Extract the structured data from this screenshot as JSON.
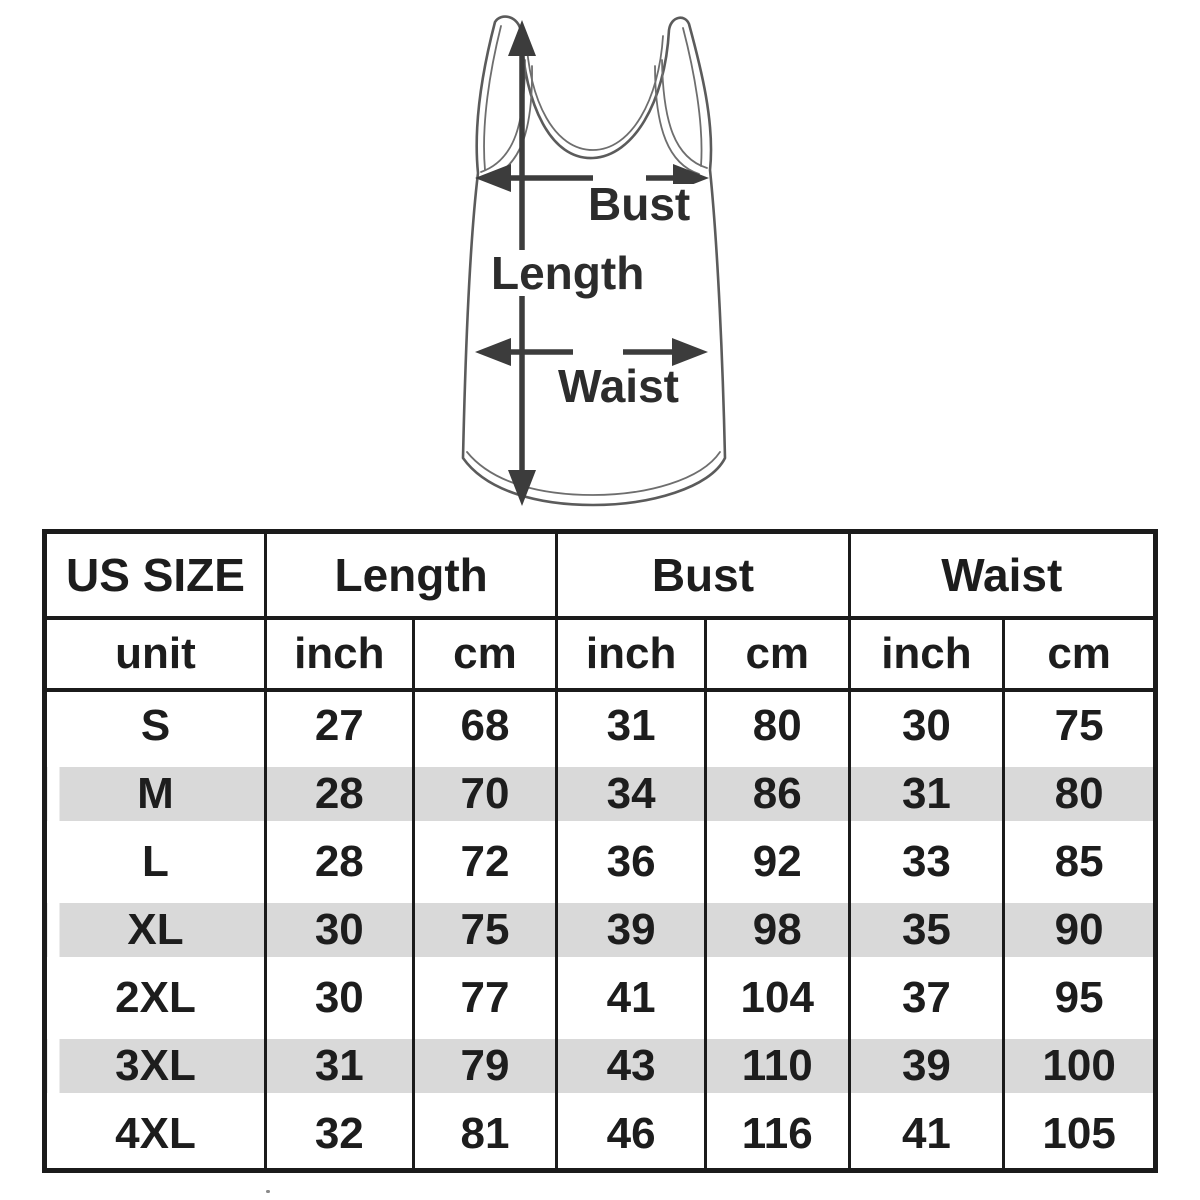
{
  "diagram": {
    "garment": "tank-top",
    "labels": {
      "length": "Length",
      "bust": "Bust",
      "waist": "Waist"
    },
    "line_color": "#5b5b5b",
    "arrow_color": "#3c3c3c",
    "label_color": "#2c2c2c"
  },
  "size_chart": {
    "border_color": "#1b1b1b",
    "stripe_color": "#d9d9d9",
    "header": {
      "size_label": "US SIZE",
      "groups": [
        "Length",
        "Bust",
        "Waist"
      ],
      "unit_label": "unit",
      "units": [
        "inch",
        "cm",
        "inch",
        "cm",
        "inch",
        "cm"
      ]
    },
    "rows": [
      {
        "size": "S",
        "values": [
          "27",
          "68",
          "31",
          "80",
          "30",
          "75"
        ],
        "striped": false
      },
      {
        "size": "M",
        "values": [
          "28",
          "70",
          "34",
          "86",
          "31",
          "80"
        ],
        "striped": true
      },
      {
        "size": "L",
        "values": [
          "28",
          "72",
          "36",
          "92",
          "33",
          "85"
        ],
        "striped": false
      },
      {
        "size": "XL",
        "values": [
          "30",
          "75",
          "39",
          "98",
          "35",
          "90"
        ],
        "striped": true
      },
      {
        "size": "2XL",
        "values": [
          "30",
          "77",
          "41",
          "104",
          "37",
          "95"
        ],
        "striped": false
      },
      {
        "size": "3XL",
        "values": [
          "31",
          "79",
          "43",
          "110",
          "39",
          "100"
        ],
        "striped": true
      },
      {
        "size": "4XL",
        "values": [
          "32",
          "81",
          "46",
          "116",
          "41",
          "105"
        ],
        "striped": false
      }
    ]
  }
}
